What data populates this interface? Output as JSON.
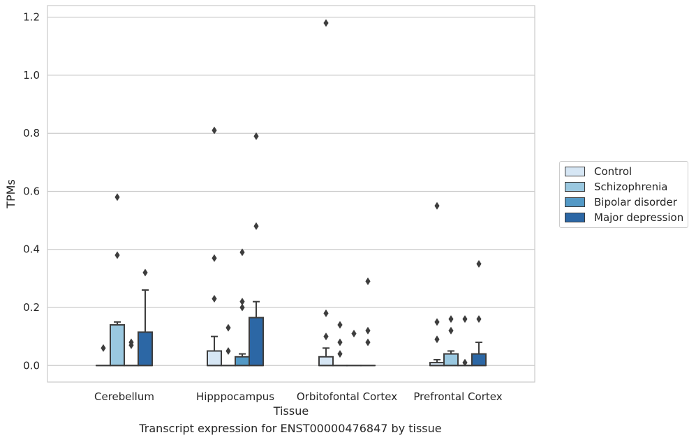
{
  "caption": "Transcript expression for ENST00000476847 by tissue",
  "chart_data": {
    "type": "box",
    "xlabel": "Tissue",
    "ylabel": "TPMs",
    "ylim": [
      -0.057,
      1.24
    ],
    "yticks": [
      "0.0",
      "0.2",
      "0.4",
      "0.6",
      "0.8",
      "1.0",
      "1.2"
    ],
    "grid": "horizontal",
    "legend_position": "right",
    "categories": [
      "Cerebellum",
      "Hipppocampus",
      "Orbitofontal Cortex",
      "Prefrontal Cortex"
    ],
    "series": [
      {
        "name": "Control",
        "color": "#d6e6f4",
        "boxes": [
          {
            "q1": 0,
            "median": 0,
            "q3": 0,
            "whisker_low": 0,
            "whisker_high": 0,
            "outliers": [
              0.06
            ]
          },
          {
            "q1": 0,
            "median": 0,
            "q3": 0.05,
            "whisker_low": 0,
            "whisker_high": 0.1,
            "outliers": [
              0.23,
              0.37,
              0.81
            ]
          },
          {
            "q1": 0,
            "median": 0,
            "q3": 0.03,
            "whisker_low": 0,
            "whisker_high": 0.06,
            "outliers": [
              0.1,
              0.18,
              1.18
            ]
          },
          {
            "q1": 0,
            "median": 0,
            "q3": 0.01,
            "whisker_low": 0,
            "whisker_high": 0.02,
            "outliers": [
              0.09,
              0.15,
              0.55
            ]
          }
        ]
      },
      {
        "name": "Schizophrenia",
        "color": "#9ac8e0",
        "boxes": [
          {
            "q1": 0,
            "median": 0,
            "q3": 0.14,
            "whisker_low": 0,
            "whisker_high": 0.15,
            "outliers": [
              0.38,
              0.58
            ]
          },
          {
            "q1": 0,
            "median": 0,
            "q3": 0,
            "whisker_low": 0,
            "whisker_high": 0,
            "outliers": [
              0.05,
              0.13
            ]
          },
          {
            "q1": 0,
            "median": 0,
            "q3": 0,
            "whisker_low": 0,
            "whisker_high": 0,
            "outliers": [
              0.04,
              0.08,
              0.14
            ]
          },
          {
            "q1": 0,
            "median": 0,
            "q3": 0.04,
            "whisker_low": 0,
            "whisker_high": 0.05,
            "outliers": [
              0.12,
              0.16
            ]
          }
        ]
      },
      {
        "name": "Bipolar disorder",
        "color": "#5399c6",
        "boxes": [
          {
            "q1": 0,
            "median": 0,
            "q3": 0,
            "whisker_low": 0,
            "whisker_high": 0,
            "outliers": [
              0.07,
              0.08
            ]
          },
          {
            "q1": 0,
            "median": 0,
            "q3": 0.03,
            "whisker_low": 0,
            "whisker_high": 0.04,
            "outliers": [
              0.2,
              0.22,
              0.39
            ]
          },
          {
            "q1": 0,
            "median": 0,
            "q3": 0,
            "whisker_low": 0,
            "whisker_high": 0,
            "outliers": [
              0.11
            ]
          },
          {
            "q1": 0,
            "median": 0,
            "q3": 0,
            "whisker_low": 0,
            "whisker_high": 0,
            "outliers": [
              0.01,
              0.16
            ]
          }
        ]
      },
      {
        "name": "Major depression",
        "color": "#2c67a5",
        "boxes": [
          {
            "q1": 0,
            "median": 0,
            "q3": 0.115,
            "whisker_low": 0,
            "whisker_high": 0.26,
            "outliers": [
              0.32
            ]
          },
          {
            "q1": 0,
            "median": 0,
            "q3": 0.165,
            "whisker_low": 0,
            "whisker_high": 0.22,
            "outliers": [
              0.48,
              0.79
            ]
          },
          {
            "q1": 0,
            "median": 0,
            "q3": 0,
            "whisker_low": 0,
            "whisker_high": 0,
            "outliers": [
              0.08,
              0.12,
              0.29
            ]
          },
          {
            "q1": 0,
            "median": 0,
            "q3": 0.04,
            "whisker_low": 0,
            "whisker_high": 0.08,
            "outliers": [
              0.16,
              0.35
            ]
          }
        ]
      }
    ]
  }
}
